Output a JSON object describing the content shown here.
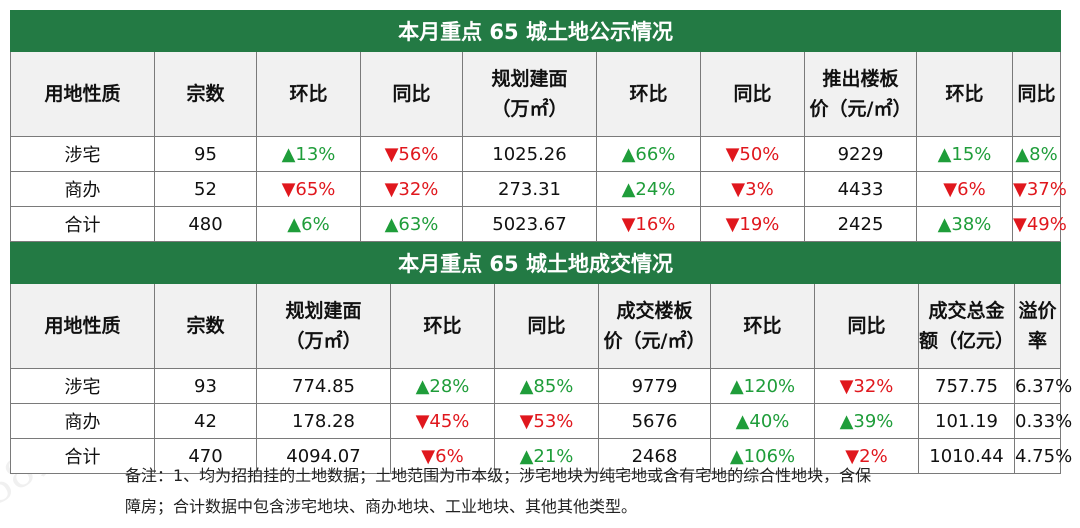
{
  "table1": {
    "title": "本月重点 65 城土地公示情况",
    "headers": [
      "用地性质",
      "宗数",
      "环比",
      "同比",
      "规划建面\n（万㎡）",
      "环比",
      "同比",
      "推出楼板\n价（元/㎡）",
      "环比",
      "同比"
    ],
    "rows": [
      [
        "涉宅",
        "95",
        "▲13%",
        "▼56%",
        "1025.26",
        "▲66%",
        "▼50%",
        "9229",
        "▲15%",
        "▲8%"
      ],
      [
        "商办",
        "52",
        "▼65%",
        "▼32%",
        "273.31",
        "▲24%",
        "▼3%",
        "4433",
        "▼6%",
        "▼37%"
      ],
      [
        "合计",
        "480",
        "▲6%",
        "▲63%",
        "5023.67",
        "▼16%",
        "▼19%",
        "2425",
        "▲38%",
        "▼49%"
      ]
    ]
  },
  "table2": {
    "title": "本月重点 65 城土地成交情况",
    "headers": [
      "用地性质",
      "宗数",
      "规划建面\n（万㎡）",
      "环比",
      "同比",
      "成交楼板\n价（元/㎡）",
      "环比",
      "同比",
      "成交总金\n额（亿元）",
      "溢价率"
    ],
    "rows": [
      [
        "涉宅",
        "93",
        "774.85",
        "▲28%",
        "▲85%",
        "9779",
        "▲120%",
        "▼32%",
        "757.75",
        "6.37%"
      ],
      [
        "商办",
        "42",
        "178.28",
        "▼45%",
        "▼53%",
        "5676",
        "▲40%",
        "▲39%",
        "101.19",
        "0.33%"
      ],
      [
        "合计",
        "470",
        "4094.07",
        "▼6%",
        "▲21%",
        "2468",
        "▲106%",
        "▼2%",
        "1010.44",
        "4.75%"
      ]
    ]
  },
  "note": {
    "line1": "备注：1、均为招拍挂的土地数据；土地范围为市本级；涉宅地块为纯宅地或含有宅地的综合性地块，含保",
    "line2": "障房；合计数据中包含涉宅地块、商办地块、工业地块、其他其他类型。"
  },
  "watermark": "58安居客研究院",
  "colors": {
    "title_bg": "#237a44",
    "header_bg": "#f1f1f1",
    "up": "#1f9d3a",
    "down": "#e0171d"
  }
}
